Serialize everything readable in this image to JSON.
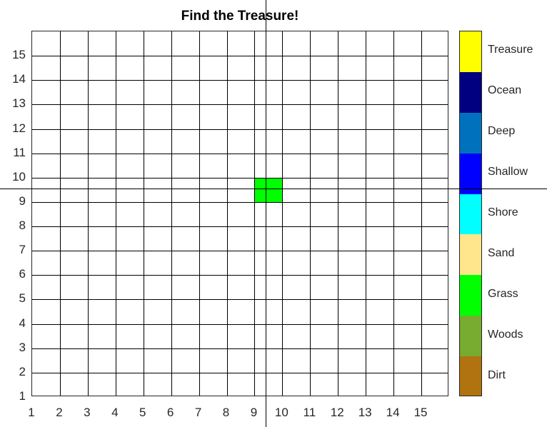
{
  "title": "Find the Treasure!",
  "board": {
    "x_ticks": [
      "1",
      "2",
      "3",
      "4",
      "5",
      "6",
      "7",
      "8",
      "9",
      "10",
      "11",
      "12",
      "13",
      "14",
      "15"
    ],
    "y_ticks": [
      "1",
      "2",
      "3",
      "4",
      "5",
      "6",
      "7",
      "8",
      "9",
      "10",
      "11",
      "12",
      "13",
      "14",
      "15"
    ],
    "filled_cells": [
      {
        "col": 9,
        "row": 9,
        "terrain": "Grass",
        "color": "#00ff00"
      }
    ]
  },
  "colorbar": {
    "categories": [
      {
        "label": "Treasure",
        "color": "#ffff00"
      },
      {
        "label": "Ocean",
        "color": "#000080"
      },
      {
        "label": "Deep",
        "color": "#0072bd"
      },
      {
        "label": "Shallow",
        "color": "#0000ff"
      },
      {
        "label": "Shore",
        "color": "#00ffff"
      },
      {
        "label": "Sand",
        "color": "#ffe68c"
      },
      {
        "label": "Grass",
        "color": "#00ff00"
      },
      {
        "label": "Woods",
        "color": "#77ac30"
      },
      {
        "label": "Dirt",
        "color": "#b07310"
      }
    ]
  },
  "cursor": {
    "type": "crosshair",
    "x_coord": 9.5,
    "y_coord": 9.5
  }
}
